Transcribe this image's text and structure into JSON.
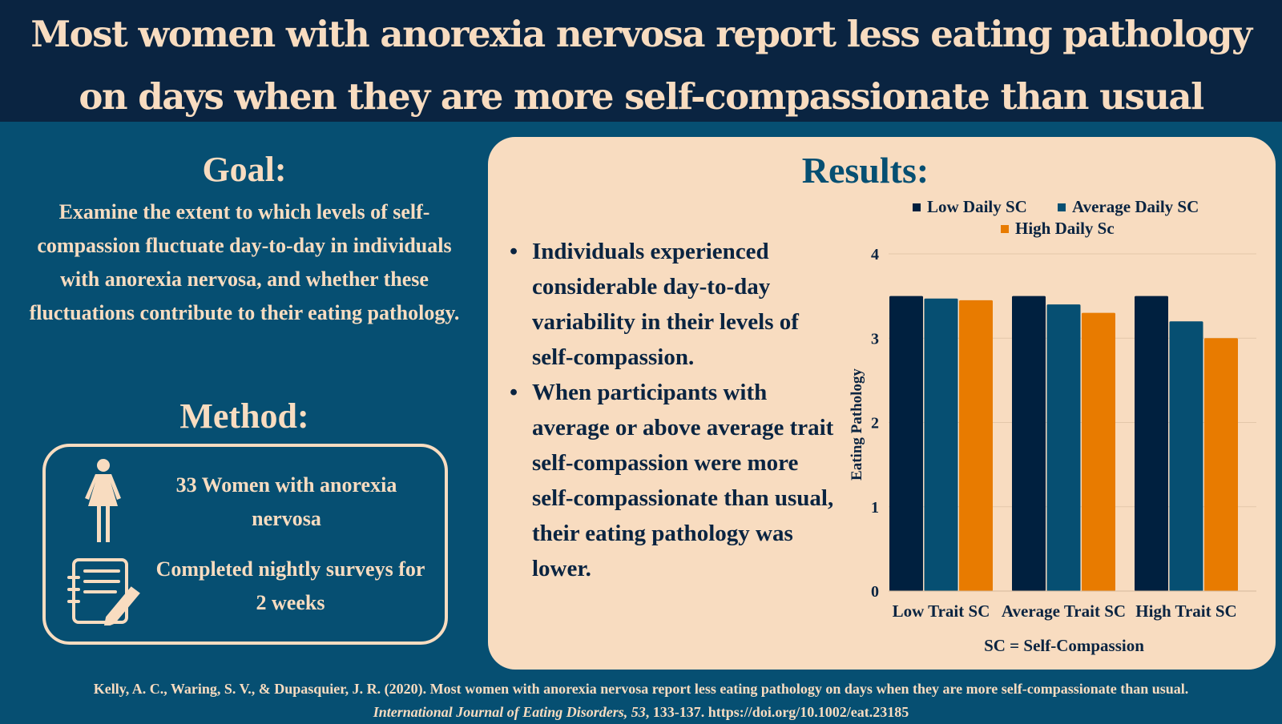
{
  "header": {
    "line1": "Most women with anorexia nervosa report less eating pathology",
    "line2": "on days when they are more self-compassionate than usual"
  },
  "goal": {
    "title": "Goal:",
    "text": "Examine the extent to which levels of self-compassion fluctuate day-to-day in individuals with anorexia nervosa, and whether these fluctuations contribute to their eating pathology."
  },
  "method": {
    "title": "Method:",
    "participants": "33 Women with anorexia nervosa",
    "procedure": "Completed nightly surveys for 2 weeks",
    "icons": [
      "woman-icon",
      "notebook-pen-icon"
    ]
  },
  "results": {
    "title": "Results:",
    "bullets": [
      "Individuals experienced considerable day-to-day variability in their levels of self-compassion.",
      "When participants with average or above average trait self-compassion were more self-compassionate than usual, their eating pathology was lower."
    ]
  },
  "chart_data": {
    "type": "bar",
    "categories": [
      "Low Trait SC",
      "Average Trait SC",
      "High Trait SC"
    ],
    "series": [
      {
        "name": "Low Daily SC",
        "color": "#00203f",
        "values": [
          3.5,
          3.5,
          3.5
        ]
      },
      {
        "name": "Average Daily SC",
        "color": "#064f72",
        "values": [
          3.47,
          3.4,
          3.2
        ]
      },
      {
        "name": "High Daily Sc",
        "color": "#e87b00",
        "values": [
          3.45,
          3.3,
          3.0
        ]
      }
    ],
    "ylabel": "Eating Pathology",
    "xlabel": "SC = Self-Compassion",
    "ylim": [
      0,
      4
    ],
    "yticks": [
      "0",
      "1",
      "2",
      "3",
      "4"
    ],
    "grid": true,
    "legend": "top"
  },
  "citation": {
    "line1": "Kelly, A. C., Waring, S. V., & Dupasquier, J. R. (2020). Most women with anorexia nervosa report less eating pathology on days when they are more self-compassionate than usual.",
    "journal": "International Journal of Eating Disorders, 53",
    "line2_rest": ", 133-137. https://doi.org/10.1002/eat.23185"
  }
}
